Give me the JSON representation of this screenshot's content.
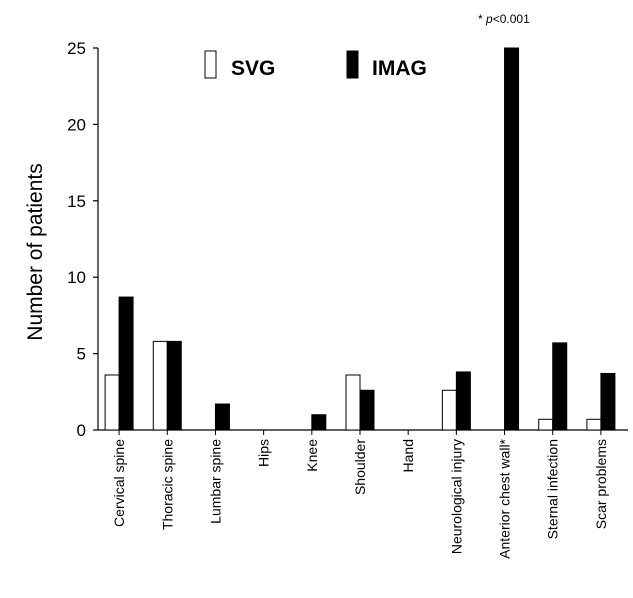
{
  "chart_data": {
    "type": "bar",
    "title": "",
    "xlabel": "",
    "ylabel": "Number of patients",
    "ylim": [
      0,
      25
    ],
    "yticks": [
      0,
      5,
      10,
      15,
      20,
      25
    ],
    "grid": false,
    "legend_position": "top-center",
    "annotation": "* p<0.001",
    "categories": [
      "Cervical spine",
      "Thoracic spine",
      "Lumbar spine",
      "Hips",
      "Knee",
      "Shoulder",
      "Hand",
      "Neurological injury",
      "Anterior chest wall*",
      "Sternal infection",
      "Scar problems"
    ],
    "series": [
      {
        "name": "SVG",
        "color": "#ffffff",
        "values": [
          3.6,
          5.8,
          0,
          0,
          0,
          3.6,
          0,
          2.6,
          0,
          0.7,
          0.7
        ]
      },
      {
        "name": "IMAG",
        "color": "#000000",
        "values": [
          8.7,
          5.8,
          1.7,
          0,
          1,
          2.6,
          0,
          3.8,
          25.8,
          5.7,
          3.7
        ]
      }
    ]
  }
}
